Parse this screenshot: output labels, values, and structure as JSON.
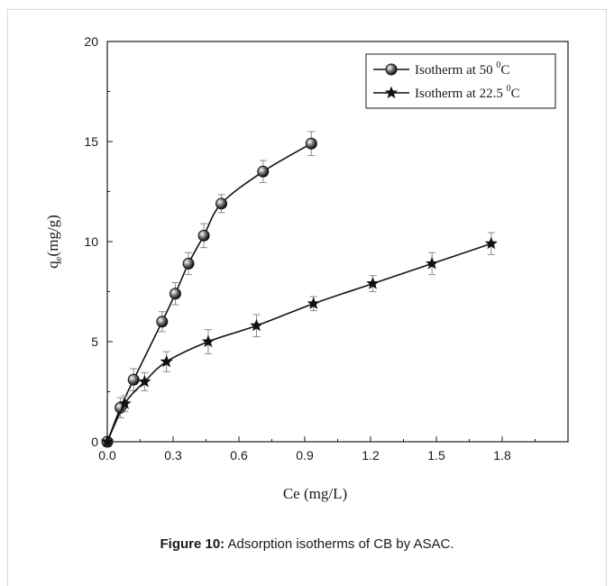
{
  "caption": {
    "prefix": "Figure 10:",
    "text": " Adsorption isotherms of CB by ASAC."
  },
  "chart_data": {
    "type": "line",
    "xlabel": "Ce (mg/L)",
    "ylabel": {
      "base": "q",
      "sub": "e",
      "rest": "(mg/g)"
    },
    "xlim": [
      0,
      2.1
    ],
    "ylim": [
      0,
      20
    ],
    "xticks": [
      0.0,
      0.3,
      0.6,
      0.9,
      1.2,
      1.5,
      1.8
    ],
    "xtick_labels": [
      "0.0",
      "0.3",
      "0.6",
      "0.9",
      "1.2",
      "1.5",
      "1.8"
    ],
    "yticks": [
      0,
      5,
      10,
      15,
      20
    ],
    "ytick_labels": [
      "0",
      "5",
      "10",
      "15",
      "20"
    ],
    "grid": false,
    "legend_position": "top-right",
    "series": [
      {
        "name": "Isotherm at 50 °C",
        "label_parts": [
          "Isotherm at 50 ",
          "0",
          "C"
        ],
        "marker": "ball",
        "x": [
          0.0,
          0.06,
          0.12,
          0.25,
          0.31,
          0.37,
          0.44,
          0.52,
          0.71,
          0.93
        ],
        "y": [
          0.0,
          1.7,
          3.1,
          6.0,
          7.4,
          8.9,
          10.3,
          11.9,
          13.5,
          14.9
        ],
        "err": [
          0.0,
          0.5,
          0.55,
          0.5,
          0.55,
          0.55,
          0.6,
          0.45,
          0.55,
          0.6
        ]
      },
      {
        "name": "Isotherm at 22.5 °C",
        "label_parts": [
          "Isotherm at 22.5 ",
          "0",
          "C"
        ],
        "marker": "star",
        "x": [
          0.0,
          0.08,
          0.17,
          0.27,
          0.46,
          0.68,
          0.94,
          1.21,
          1.48,
          1.75
        ],
        "y": [
          0.0,
          1.9,
          3.0,
          4.0,
          5.0,
          5.8,
          6.9,
          7.9,
          8.9,
          9.9
        ],
        "err": [
          0.0,
          0.4,
          0.45,
          0.5,
          0.6,
          0.55,
          0.35,
          0.4,
          0.55,
          0.55
        ]
      }
    ]
  }
}
